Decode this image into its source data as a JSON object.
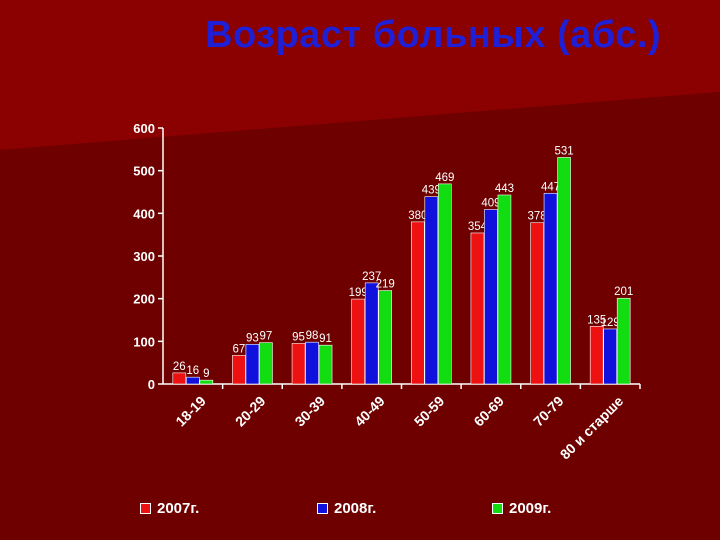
{
  "title": "Возраст больных (абс.)",
  "colors": {
    "background": "#6e0000",
    "title": "#1f1fd6",
    "axis": "#ffffff"
  },
  "chart_data": {
    "type": "bar",
    "categories": [
      "18-19",
      "20-29",
      "30-39",
      "40-49",
      "50-59",
      "60-69",
      "70-79",
      "80 и старше"
    ],
    "series": [
      {
        "name": "2007г.",
        "color": "#ee1111",
        "values": [
          26,
          67,
          95,
          199,
          380,
          354,
          378,
          135
        ]
      },
      {
        "name": "2008г.",
        "color": "#1111dd",
        "values": [
          16,
          93,
          98,
          237,
          439,
          409,
          447,
          129
        ]
      },
      {
        "name": "2009г.",
        "color": "#11dd11",
        "values": [
          9,
          97,
          91,
          219,
          469,
          443,
          531,
          201
        ]
      }
    ],
    "yticks": [
      "0",
      "100",
      "200",
      "300",
      "400",
      "500",
      "600"
    ],
    "ylim": [
      0,
      600
    ],
    "xlabel": "",
    "ylabel": "",
    "grid": false,
    "legend": "bottom"
  }
}
